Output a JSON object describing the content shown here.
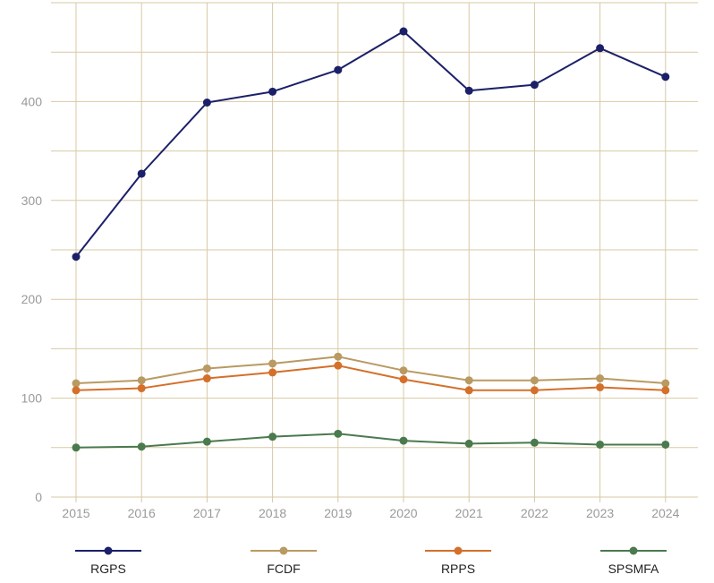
{
  "chart_data": {
    "type": "line",
    "title": "",
    "xlabel": "",
    "ylabel": "",
    "x": [
      "2015",
      "2016",
      "2017",
      "2018",
      "2019",
      "2020",
      "2021",
      "2022",
      "2023",
      "2024"
    ],
    "ylim": [
      0,
      500
    ],
    "y_ticks": [
      "0",
      "100",
      "200",
      "300",
      "400"
    ],
    "grid": true,
    "legend_position": "bottom",
    "series": [
      {
        "name": "RGPS",
        "color": "#1b2068",
        "values": [
          243,
          327,
          399,
          410,
          432,
          471,
          411,
          417,
          454,
          425
        ]
      },
      {
        "name": "FCDF",
        "color": "#b89a62",
        "values": [
          115,
          118,
          130,
          135,
          142,
          128,
          118,
          118,
          120,
          115
        ]
      },
      {
        "name": "RPPS",
        "color": "#d4702a",
        "values": [
          108,
          110,
          120,
          126,
          133,
          119,
          108,
          108,
          111,
          108
        ]
      },
      {
        "name": "SPSMFA",
        "color": "#4a7a4e",
        "values": [
          50,
          51,
          56,
          61,
          64,
          57,
          54,
          55,
          53,
          53
        ]
      }
    ]
  }
}
